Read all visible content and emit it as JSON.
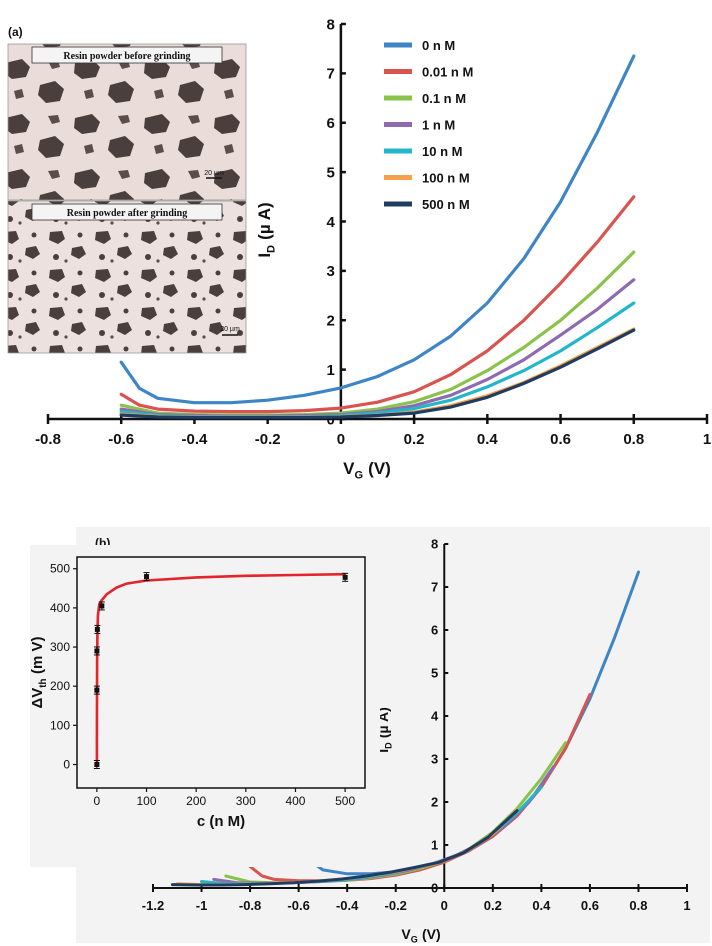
{
  "panel_a": {
    "panel_label": "(a)",
    "micrograph_top": {
      "caption": "Resin powder before grinding",
      "scale_label": "20 µm"
    },
    "micrograph_bottom": {
      "caption": "Resin powder after grinding",
      "scale_label": "20 µm"
    }
  },
  "panel_b": {
    "panel_label": "(b)"
  },
  "chart_data": [
    {
      "type": "line",
      "xlabel": "V",
      "xlabel_sub": "G",
      "xlabel_unit": "(V)",
      "ylabel": "I",
      "ylabel_sub": "D",
      "ylabel_unit": "(µ A)",
      "xlim": [
        -0.8,
        1
      ],
      "ylim": [
        0,
        8
      ],
      "xticks": [
        -0.8,
        -0.6,
        -0.4,
        -0.2,
        0,
        0.2,
        0.4,
        0.6,
        0.8,
        1
      ],
      "yticks": [
        0,
        1,
        2,
        3,
        4,
        5,
        6,
        7,
        8
      ],
      "legend_position": "top-left",
      "series": [
        {
          "name": "0 n M",
          "color": "#3d85c6",
          "x": [
            -0.6,
            -0.55,
            -0.5,
            -0.4,
            -0.3,
            -0.2,
            -0.1,
            0,
            0.1,
            0.2,
            0.3,
            0.4,
            0.5,
            0.6,
            0.7,
            0.8
          ],
          "y": [
            1.15,
            0.62,
            0.42,
            0.33,
            0.33,
            0.38,
            0.48,
            0.63,
            0.86,
            1.2,
            1.68,
            2.35,
            3.25,
            4.4,
            5.8,
            7.35
          ]
        },
        {
          "name": "0.01 n M",
          "color": "#d9534f",
          "x": [
            -0.6,
            -0.55,
            -0.5,
            -0.4,
            -0.3,
            -0.2,
            -0.1,
            0,
            0.1,
            0.2,
            0.3,
            0.4,
            0.5,
            0.6,
            0.7,
            0.8
          ],
          "y": [
            0.5,
            0.28,
            0.2,
            0.16,
            0.15,
            0.15,
            0.17,
            0.22,
            0.34,
            0.55,
            0.9,
            1.38,
            2.0,
            2.75,
            3.58,
            4.5
          ]
        },
        {
          "name": "0.1 n M",
          "color": "#8bc34a",
          "x": [
            -0.6,
            -0.5,
            -0.4,
            -0.3,
            -0.2,
            -0.1,
            0,
            0.1,
            0.2,
            0.3,
            0.4,
            0.5,
            0.6,
            0.7,
            0.8
          ],
          "y": [
            0.28,
            0.12,
            0.09,
            0.08,
            0.08,
            0.09,
            0.12,
            0.2,
            0.35,
            0.6,
            0.98,
            1.45,
            2.0,
            2.65,
            3.38
          ]
        },
        {
          "name": "1 n M",
          "color": "#8e6bb0",
          "x": [
            -0.6,
            -0.5,
            -0.4,
            -0.3,
            -0.2,
            -0.1,
            0,
            0.1,
            0.2,
            0.3,
            0.4,
            0.5,
            0.6,
            0.7,
            0.8
          ],
          "y": [
            0.2,
            0.09,
            0.07,
            0.06,
            0.06,
            0.07,
            0.09,
            0.15,
            0.27,
            0.48,
            0.8,
            1.2,
            1.7,
            2.22,
            2.82
          ]
        },
        {
          "name": "10 n M",
          "color": "#21b6c9",
          "x": [
            -0.6,
            -0.5,
            -0.4,
            -0.3,
            -0.2,
            -0.1,
            0,
            0.1,
            0.2,
            0.3,
            0.4,
            0.5,
            0.6,
            0.7,
            0.8
          ],
          "y": [
            0.15,
            0.07,
            0.05,
            0.05,
            0.05,
            0.05,
            0.07,
            0.12,
            0.21,
            0.38,
            0.65,
            0.98,
            1.38,
            1.85,
            2.35
          ]
        },
        {
          "name": "100 n M",
          "color": "#f5a04a",
          "x": [
            -0.6,
            -0.5,
            -0.4,
            -0.3,
            -0.2,
            -0.1,
            0,
            0.1,
            0.2,
            0.3,
            0.4,
            0.5,
            0.6,
            0.7,
            0.8
          ],
          "y": [
            0.1,
            0.05,
            0.04,
            0.04,
            0.04,
            0.04,
            0.05,
            0.08,
            0.14,
            0.27,
            0.47,
            0.74,
            1.08,
            1.45,
            1.82
          ]
        },
        {
          "name": "500 n M",
          "color": "#1f3d63",
          "x": [
            -0.6,
            -0.5,
            -0.4,
            -0.3,
            -0.2,
            -0.1,
            0,
            0.1,
            0.2,
            0.3,
            0.4,
            0.5,
            0.6,
            0.7,
            0.8
          ],
          "y": [
            0.08,
            0.04,
            0.03,
            0.03,
            0.03,
            0.03,
            0.04,
            0.07,
            0.12,
            0.24,
            0.44,
            0.72,
            1.05,
            1.42,
            1.8
          ]
        }
      ]
    },
    {
      "type": "line",
      "xlabel": "V",
      "xlabel_sub": "G",
      "xlabel_unit": "(V)",
      "ylabel": "I",
      "ylabel_sub": "D",
      "ylabel_unit": "(µ A)",
      "xlim": [
        -1.2,
        1
      ],
      "ylim": [
        0,
        8
      ],
      "xticks": [
        -1.2,
        -1,
        -0.8,
        -0.6,
        -0.4,
        -0.2,
        0,
        0.2,
        0.4,
        0.6,
        0.8,
        1
      ],
      "yticks": [
        0,
        1,
        2,
        3,
        4,
        5,
        6,
        7,
        8
      ],
      "series": [
        {
          "color": "#3d85c6",
          "x": [
            -0.6,
            -0.55,
            -0.5,
            -0.4,
            -0.3,
            -0.2,
            -0.1,
            0,
            0.1,
            0.2,
            0.3,
            0.4,
            0.5,
            0.6,
            0.7,
            0.8
          ],
          "y": [
            1.15,
            0.62,
            0.42,
            0.33,
            0.33,
            0.38,
            0.48,
            0.63,
            0.86,
            1.2,
            1.68,
            2.35,
            3.25,
            4.4,
            5.8,
            7.35
          ]
        },
        {
          "color": "#d9534f",
          "x": [
            -0.8,
            -0.75,
            -0.7,
            -0.6,
            -0.5,
            -0.4,
            -0.3,
            -0.2,
            -0.1,
            0,
            0.1,
            0.2,
            0.3,
            0.4,
            0.5,
            0.6
          ],
          "y": [
            0.5,
            0.28,
            0.2,
            0.17,
            0.17,
            0.18,
            0.22,
            0.3,
            0.42,
            0.6,
            0.86,
            1.2,
            1.68,
            2.35,
            3.25,
            4.5
          ]
        },
        {
          "color": "#8bc34a",
          "x": [
            -0.9,
            -0.8,
            -0.7,
            -0.6,
            -0.5,
            -0.4,
            -0.3,
            -0.2,
            -0.1,
            0,
            0.1,
            0.2,
            0.3,
            0.4,
            0.5
          ],
          "y": [
            0.28,
            0.14,
            0.12,
            0.13,
            0.15,
            0.18,
            0.24,
            0.32,
            0.45,
            0.63,
            0.9,
            1.3,
            1.85,
            2.55,
            3.38
          ]
        },
        {
          "color": "#8e6bb0",
          "x": [
            -0.95,
            -0.85,
            -0.75,
            -0.65,
            -0.55,
            -0.45,
            -0.35,
            -0.25,
            -0.15,
            -0.05,
            0.05,
            0.15,
            0.25,
            0.35,
            0.45
          ],
          "y": [
            0.2,
            0.12,
            0.11,
            0.12,
            0.14,
            0.17,
            0.22,
            0.3,
            0.41,
            0.56,
            0.76,
            1.05,
            1.45,
            2.0,
            2.82
          ]
        },
        {
          "color": "#21b6c9",
          "x": [
            -1.0,
            -0.9,
            -0.8,
            -0.7,
            -0.6,
            -0.5,
            -0.4,
            -0.3,
            -0.2,
            -0.1,
            0,
            0.1,
            0.2,
            0.3,
            0.4
          ],
          "y": [
            0.15,
            0.1,
            0.1,
            0.11,
            0.13,
            0.16,
            0.2,
            0.27,
            0.37,
            0.5,
            0.63,
            0.88,
            1.25,
            1.75,
            2.35
          ]
        },
        {
          "color": "#f5a04a",
          "x": [
            -1.1,
            -1.0,
            -0.9,
            -0.8,
            -0.7,
            -0.6,
            -0.5,
            -0.4,
            -0.3,
            -0.2,
            -0.1,
            0,
            0.1,
            0.2,
            0.3
          ],
          "y": [
            0.1,
            0.08,
            0.08,
            0.09,
            0.11,
            0.13,
            0.17,
            0.22,
            0.29,
            0.38,
            0.5,
            0.63,
            0.88,
            1.25,
            1.82
          ]
        },
        {
          "color": "#1f3d63",
          "x": [
            -1.12,
            -1.02,
            -0.92,
            -0.82,
            -0.72,
            -0.62,
            -0.52,
            -0.42,
            -0.32,
            -0.22,
            -0.12,
            -0.02,
            0.08,
            0.18,
            0.3
          ],
          "y": [
            0.08,
            0.07,
            0.07,
            0.08,
            0.1,
            0.12,
            0.16,
            0.21,
            0.28,
            0.37,
            0.48,
            0.6,
            0.82,
            1.18,
            1.8
          ]
        }
      ]
    },
    {
      "type": "scatter",
      "xlabel": "c (n M)",
      "ylabel": "ΔV",
      "ylabel_sub": "th",
      "ylabel_unit": "(m V)",
      "xlim": [
        -40,
        540
      ],
      "ylim": [
        -60,
        530
      ],
      "xticks": [
        0,
        100,
        200,
        300,
        400,
        500
      ],
      "yticks": [
        0,
        100,
        200,
        300,
        400,
        500
      ],
      "points": {
        "color": "#111111",
        "x": [
          0,
          0.01,
          0.1,
          1,
          10,
          100,
          500
        ],
        "y": [
          0,
          190,
          290,
          345,
          405,
          480,
          478
        ]
      },
      "fit": {
        "color": "#e3242b",
        "x": [
          0,
          0.05,
          0.2,
          0.5,
          1,
          2,
          5,
          10,
          20,
          40,
          60,
          100,
          200,
          300,
          400,
          500
        ],
        "y": [
          0,
          60,
          170,
          260,
          330,
          380,
          410,
          420,
          435,
          452,
          462,
          470,
          478,
          482,
          484,
          486
        ]
      }
    }
  ]
}
